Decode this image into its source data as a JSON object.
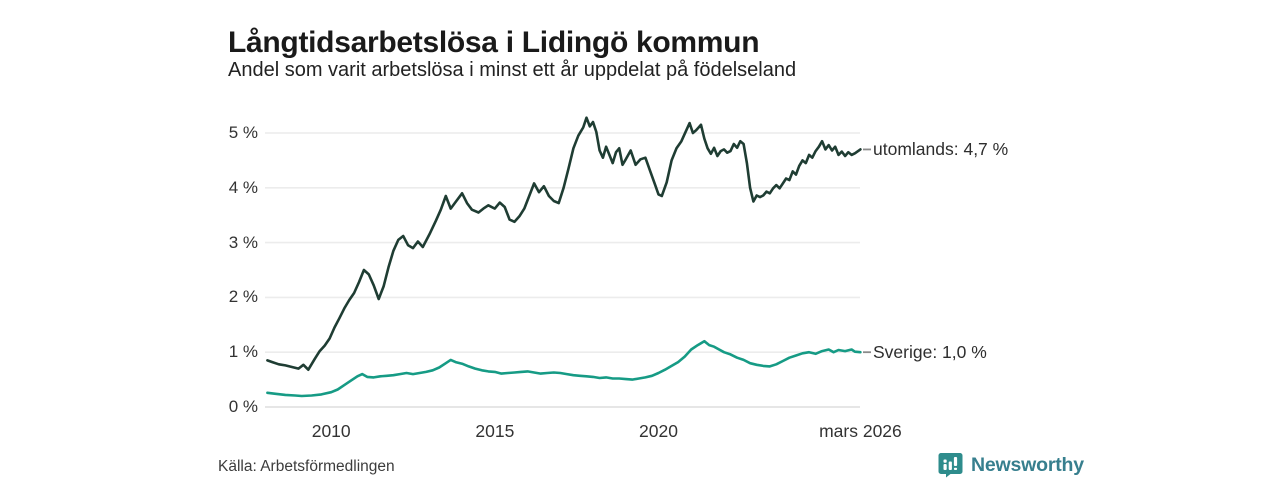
{
  "header": {
    "title": "Långtidsarbetslösa i Lidingö kommun",
    "subtitle": "Andel som varit arbetslösa i minst ett år uppdelat på födelseland"
  },
  "source_text": "Källa: Arbetsförmedlingen",
  "branding": {
    "name": "Newsworthy",
    "icon": "bar-chart-pin-icon",
    "badge_color": "#2e8c8c",
    "text_color": "#377f8e"
  },
  "colors": {
    "grid": "#ececec",
    "baseline": "#dedede",
    "tick_text": "#333333",
    "label_dash": "#8a8a8a"
  },
  "chart_data": {
    "type": "line",
    "title": "Långtidsarbetslösa i Lidingö kommun",
    "subtitle": "Andel som varit arbetslösa i minst ett år uppdelat på födelseland",
    "unit": "%",
    "grid": true,
    "legend_position": "right-end-labels",
    "x_axis": {
      "range": [
        2008.05,
        2026.17
      ],
      "ticks": [
        {
          "label": "2010",
          "year": 2010
        },
        {
          "label": "2015",
          "year": 2015
        },
        {
          "label": "2020",
          "year": 2020
        },
        {
          "label": "mars 2026",
          "year": 2026.17
        }
      ]
    },
    "y_axis": {
      "range": [
        0,
        5.4
      ],
      "ticks": [
        {
          "label": "0 %",
          "value": 0
        },
        {
          "label": "1 %",
          "value": 1
        },
        {
          "label": "2 %",
          "value": 2
        },
        {
          "label": "3 %",
          "value": 3
        },
        {
          "label": "4 %",
          "value": 4
        },
        {
          "label": "5 %",
          "value": 5
        }
      ]
    },
    "series": [
      {
        "name": "utomlands",
        "end_label": "utomlands: 4,7 %",
        "latest_value": "4,7 %",
        "color": "#1f3d33",
        "points": [
          [
            2008.05,
            0.85
          ],
          [
            2008.2,
            0.82
          ],
          [
            2008.4,
            0.78
          ],
          [
            2008.6,
            0.76
          ],
          [
            2008.8,
            0.73
          ],
          [
            2009.0,
            0.7
          ],
          [
            2009.15,
            0.77
          ],
          [
            2009.3,
            0.68
          ],
          [
            2009.5,
            0.88
          ],
          [
            2009.65,
            1.02
          ],
          [
            2009.8,
            1.12
          ],
          [
            2009.95,
            1.25
          ],
          [
            2010.1,
            1.45
          ],
          [
            2010.25,
            1.62
          ],
          [
            2010.4,
            1.8
          ],
          [
            2010.55,
            1.95
          ],
          [
            2010.7,
            2.08
          ],
          [
            2010.85,
            2.28
          ],
          [
            2011.0,
            2.5
          ],
          [
            2011.15,
            2.42
          ],
          [
            2011.3,
            2.22
          ],
          [
            2011.45,
            1.97
          ],
          [
            2011.6,
            2.2
          ],
          [
            2011.75,
            2.55
          ],
          [
            2011.9,
            2.85
          ],
          [
            2012.05,
            3.05
          ],
          [
            2012.2,
            3.12
          ],
          [
            2012.35,
            2.95
          ],
          [
            2012.5,
            2.9
          ],
          [
            2012.65,
            3.02
          ],
          [
            2012.8,
            2.92
          ],
          [
            2013.0,
            3.15
          ],
          [
            2013.2,
            3.4
          ],
          [
            2013.35,
            3.6
          ],
          [
            2013.5,
            3.85
          ],
          [
            2013.65,
            3.62
          ],
          [
            2013.8,
            3.74
          ],
          [
            2014.0,
            3.9
          ],
          [
            2014.15,
            3.72
          ],
          [
            2014.3,
            3.6
          ],
          [
            2014.5,
            3.55
          ],
          [
            2014.65,
            3.62
          ],
          [
            2014.8,
            3.68
          ],
          [
            2015.0,
            3.62
          ],
          [
            2015.15,
            3.73
          ],
          [
            2015.3,
            3.65
          ],
          [
            2015.45,
            3.42
          ],
          [
            2015.6,
            3.38
          ],
          [
            2015.75,
            3.48
          ],
          [
            2015.9,
            3.62
          ],
          [
            2016.05,
            3.85
          ],
          [
            2016.2,
            4.08
          ],
          [
            2016.35,
            3.92
          ],
          [
            2016.5,
            4.03
          ],
          [
            2016.65,
            3.85
          ],
          [
            2016.8,
            3.76
          ],
          [
            2016.95,
            3.72
          ],
          [
            2017.1,
            4.0
          ],
          [
            2017.25,
            4.35
          ],
          [
            2017.4,
            4.72
          ],
          [
            2017.55,
            4.95
          ],
          [
            2017.7,
            5.1
          ],
          [
            2017.8,
            5.28
          ],
          [
            2017.9,
            5.12
          ],
          [
            2018.0,
            5.2
          ],
          [
            2018.1,
            5.02
          ],
          [
            2018.2,
            4.68
          ],
          [
            2018.3,
            4.55
          ],
          [
            2018.4,
            4.75
          ],
          [
            2018.5,
            4.6
          ],
          [
            2018.6,
            4.45
          ],
          [
            2018.7,
            4.65
          ],
          [
            2018.8,
            4.72
          ],
          [
            2018.9,
            4.42
          ],
          [
            2019.0,
            4.52
          ],
          [
            2019.15,
            4.68
          ],
          [
            2019.3,
            4.42
          ],
          [
            2019.45,
            4.52
          ],
          [
            2019.6,
            4.55
          ],
          [
            2019.75,
            4.3
          ],
          [
            2019.9,
            4.05
          ],
          [
            2020.0,
            3.88
          ],
          [
            2020.1,
            3.85
          ],
          [
            2020.25,
            4.1
          ],
          [
            2020.4,
            4.5
          ],
          [
            2020.55,
            4.72
          ],
          [
            2020.7,
            4.85
          ],
          [
            2020.85,
            5.05
          ],
          [
            2020.95,
            5.18
          ],
          [
            2021.05,
            5.0
          ],
          [
            2021.15,
            5.05
          ],
          [
            2021.3,
            5.15
          ],
          [
            2021.4,
            4.9
          ],
          [
            2021.5,
            4.72
          ],
          [
            2021.6,
            4.62
          ],
          [
            2021.7,
            4.73
          ],
          [
            2021.8,
            4.58
          ],
          [
            2021.9,
            4.67
          ],
          [
            2022.0,
            4.7
          ],
          [
            2022.1,
            4.64
          ],
          [
            2022.2,
            4.67
          ],
          [
            2022.3,
            4.8
          ],
          [
            2022.4,
            4.73
          ],
          [
            2022.5,
            4.85
          ],
          [
            2022.6,
            4.8
          ],
          [
            2022.7,
            4.45
          ],
          [
            2022.8,
            4.0
          ],
          [
            2022.9,
            3.75
          ],
          [
            2023.0,
            3.86
          ],
          [
            2023.1,
            3.83
          ],
          [
            2023.2,
            3.86
          ],
          [
            2023.3,
            3.93
          ],
          [
            2023.4,
            3.9
          ],
          [
            2023.5,
            3.99
          ],
          [
            2023.6,
            4.05
          ],
          [
            2023.7,
            3.99
          ],
          [
            2023.8,
            4.08
          ],
          [
            2023.9,
            4.17
          ],
          [
            2024.0,
            4.14
          ],
          [
            2024.1,
            4.3
          ],
          [
            2024.2,
            4.24
          ],
          [
            2024.3,
            4.4
          ],
          [
            2024.4,
            4.5
          ],
          [
            2024.5,
            4.45
          ],
          [
            2024.6,
            4.6
          ],
          [
            2024.7,
            4.55
          ],
          [
            2024.8,
            4.67
          ],
          [
            2024.9,
            4.75
          ],
          [
            2025.0,
            4.85
          ],
          [
            2025.1,
            4.7
          ],
          [
            2025.2,
            4.78
          ],
          [
            2025.3,
            4.68
          ],
          [
            2025.4,
            4.75
          ],
          [
            2025.5,
            4.6
          ],
          [
            2025.6,
            4.66
          ],
          [
            2025.7,
            4.58
          ],
          [
            2025.8,
            4.65
          ],
          [
            2025.9,
            4.6
          ],
          [
            2026.0,
            4.63
          ],
          [
            2026.17,
            4.7
          ]
        ]
      },
      {
        "name": "Sverige",
        "end_label": "Sverige: 1,0 %",
        "latest_value": "1,0 %",
        "color": "#169b85",
        "points": [
          [
            2008.05,
            0.26
          ],
          [
            2008.3,
            0.24
          ],
          [
            2008.6,
            0.22
          ],
          [
            2008.9,
            0.21
          ],
          [
            2009.1,
            0.2
          ],
          [
            2009.4,
            0.21
          ],
          [
            2009.7,
            0.23
          ],
          [
            2010.0,
            0.27
          ],
          [
            2010.2,
            0.32
          ],
          [
            2010.4,
            0.4
          ],
          [
            2010.6,
            0.48
          ],
          [
            2010.8,
            0.56
          ],
          [
            2010.95,
            0.6
          ],
          [
            2011.1,
            0.55
          ],
          [
            2011.3,
            0.54
          ],
          [
            2011.5,
            0.56
          ],
          [
            2011.7,
            0.57
          ],
          [
            2011.9,
            0.58
          ],
          [
            2012.1,
            0.6
          ],
          [
            2012.3,
            0.62
          ],
          [
            2012.5,
            0.6
          ],
          [
            2012.7,
            0.62
          ],
          [
            2012.9,
            0.64
          ],
          [
            2013.1,
            0.67
          ],
          [
            2013.3,
            0.72
          ],
          [
            2013.5,
            0.8
          ],
          [
            2013.65,
            0.86
          ],
          [
            2013.8,
            0.82
          ],
          [
            2014.0,
            0.79
          ],
          [
            2014.2,
            0.74
          ],
          [
            2014.4,
            0.7
          ],
          [
            2014.6,
            0.67
          ],
          [
            2014.8,
            0.65
          ],
          [
            2015.0,
            0.64
          ],
          [
            2015.2,
            0.61
          ],
          [
            2015.4,
            0.62
          ],
          [
            2015.6,
            0.63
          ],
          [
            2015.8,
            0.64
          ],
          [
            2016.0,
            0.65
          ],
          [
            2016.2,
            0.63
          ],
          [
            2016.4,
            0.61
          ],
          [
            2016.6,
            0.62
          ],
          [
            2016.8,
            0.63
          ],
          [
            2017.0,
            0.62
          ],
          [
            2017.2,
            0.6
          ],
          [
            2017.4,
            0.58
          ],
          [
            2017.6,
            0.57
          ],
          [
            2017.8,
            0.56
          ],
          [
            2018.0,
            0.55
          ],
          [
            2018.2,
            0.53
          ],
          [
            2018.4,
            0.54
          ],
          [
            2018.6,
            0.52
          ],
          [
            2018.8,
            0.52
          ],
          [
            2019.0,
            0.51
          ],
          [
            2019.2,
            0.5
          ],
          [
            2019.4,
            0.52
          ],
          [
            2019.6,
            0.54
          ],
          [
            2019.8,
            0.57
          ],
          [
            2020.0,
            0.62
          ],
          [
            2020.2,
            0.68
          ],
          [
            2020.4,
            0.75
          ],
          [
            2020.6,
            0.82
          ],
          [
            2020.8,
            0.92
          ],
          [
            2021.0,
            1.05
          ],
          [
            2021.2,
            1.13
          ],
          [
            2021.4,
            1.2
          ],
          [
            2021.55,
            1.13
          ],
          [
            2021.7,
            1.1
          ],
          [
            2021.85,
            1.05
          ],
          [
            2022.0,
            1.0
          ],
          [
            2022.2,
            0.96
          ],
          [
            2022.4,
            0.9
          ],
          [
            2022.6,
            0.86
          ],
          [
            2022.8,
            0.8
          ],
          [
            2023.0,
            0.77
          ],
          [
            2023.2,
            0.75
          ],
          [
            2023.4,
            0.74
          ],
          [
            2023.6,
            0.78
          ],
          [
            2023.8,
            0.84
          ],
          [
            2024.0,
            0.9
          ],
          [
            2024.2,
            0.94
          ],
          [
            2024.4,
            0.98
          ],
          [
            2024.6,
            1.0
          ],
          [
            2024.8,
            0.97
          ],
          [
            2025.0,
            1.02
          ],
          [
            2025.2,
            1.05
          ],
          [
            2025.35,
            1.0
          ],
          [
            2025.5,
            1.04
          ],
          [
            2025.7,
            1.02
          ],
          [
            2025.9,
            1.05
          ],
          [
            2026.0,
            1.01
          ],
          [
            2026.17,
            1.0
          ]
        ]
      }
    ]
  }
}
